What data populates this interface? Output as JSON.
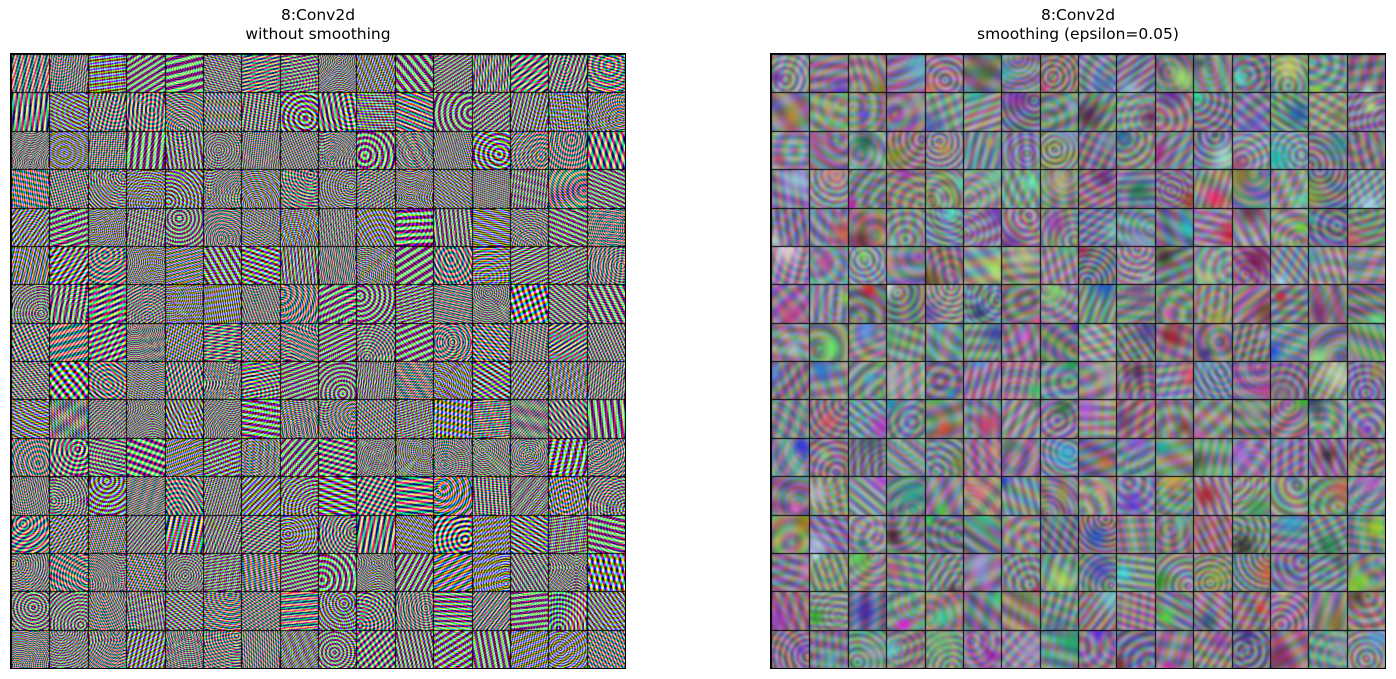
{
  "panels": [
    {
      "id": "without-smoothing",
      "title_line1": "8:Conv2d",
      "title_line2": "without smoothing",
      "grid_rows": 16,
      "grid_cols": 16,
      "style": "high-frequency saturated noise"
    },
    {
      "id": "with-smoothing",
      "title_line1": "8:Conv2d",
      "title_line2": "smoothing (epsilon=0.05)",
      "grid_rows": 16,
      "grid_cols": 16,
      "style": "smooth low-contrast patterns"
    }
  ]
}
